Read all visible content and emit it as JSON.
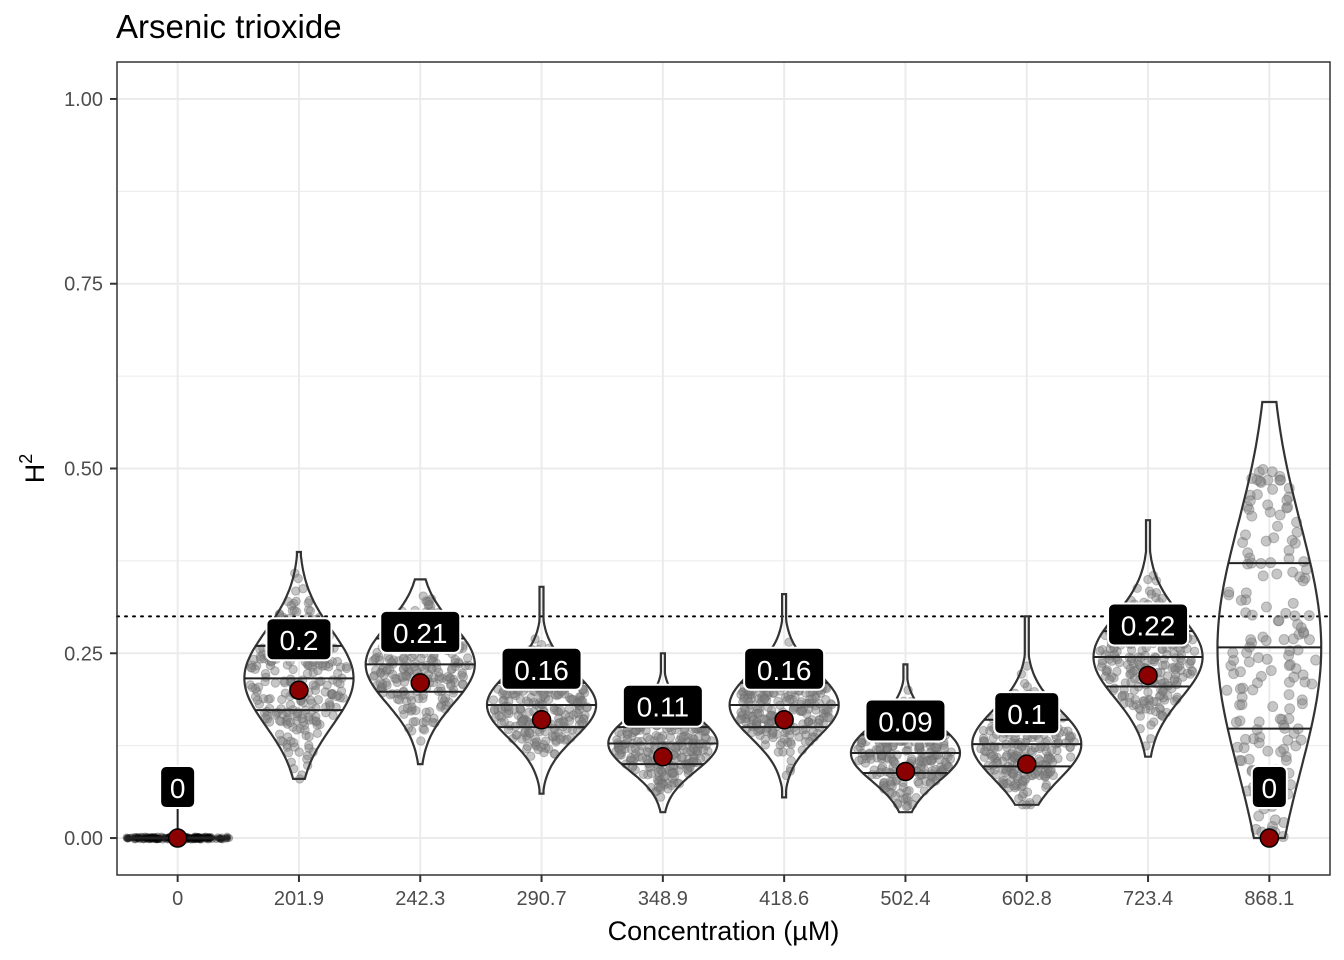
{
  "chart_data": {
    "type": "violin",
    "title": "Arsenic trioxide",
    "xlabel": "Concentration (µM)",
    "ylabel": "H",
    "ylabel_superscript": "2",
    "ylim": [
      -0.05,
      1.05
    ],
    "yticks": [
      "0.00",
      "0.25",
      "0.50",
      "0.75",
      "1.00"
    ],
    "grid": true,
    "reference_line": {
      "y": 0.3,
      "style": "dotted"
    },
    "categories": [
      "0",
      "201.9",
      "242.3",
      "290.7",
      "348.9",
      "418.6",
      "502.4",
      "602.8",
      "723.4",
      "868.1"
    ],
    "point_estimates": [
      0,
      0.2,
      0.21,
      0.16,
      0.11,
      0.16,
      0.09,
      0.1,
      0.22,
      0
    ],
    "point_labels": [
      "0",
      "0.2",
      "0.21",
      "0.16",
      "0.11",
      "0.16",
      "0.09",
      "0.1",
      "0.22",
      "0"
    ],
    "quantiles": [
      {
        "q25": 0,
        "q50": 0,
        "q75": 0
      },
      {
        "q25": 0.173,
        "q50": 0.216,
        "q75": 0.26
      },
      {
        "q25": 0.198,
        "q50": 0.235,
        "q75": 0.27
      },
      {
        "q25": 0.15,
        "q50": 0.18,
        "q75": 0.21
      },
      {
        "q25": 0.1,
        "q50": 0.128,
        "q75": 0.15
      },
      {
        "q25": 0.15,
        "q50": 0.18,
        "q75": 0.21
      },
      {
        "q25": 0.088,
        "q50": 0.115,
        "q75": 0.14
      },
      {
        "q25": 0.097,
        "q50": 0.127,
        "q75": 0.16
      },
      {
        "q25": 0.205,
        "q50": 0.245,
        "q75": 0.28
      },
      {
        "q25": 0.148,
        "q50": 0.258,
        "q75": 0.372
      }
    ],
    "ranges": [
      {
        "min": 0,
        "max": 0.09
      },
      {
        "min": 0.08,
        "max": 0.387
      },
      {
        "min": 0.1,
        "max": 0.35
      },
      {
        "min": 0.06,
        "max": 0.34
      },
      {
        "min": 0.035,
        "max": 0.25
      },
      {
        "min": 0.055,
        "max": 0.33
      },
      {
        "min": 0.035,
        "max": 0.235
      },
      {
        "min": 0.045,
        "max": 0.3
      },
      {
        "min": 0.11,
        "max": 0.43
      },
      {
        "min": 0,
        "max": 0.59
      }
    ],
    "colors": {
      "point": "#8b0000",
      "violin_stroke": "#333333",
      "jitter": "#808080",
      "label_bg": "#000000",
      "label_text": "#ffffff",
      "grid": "#ebebeb"
    }
  }
}
